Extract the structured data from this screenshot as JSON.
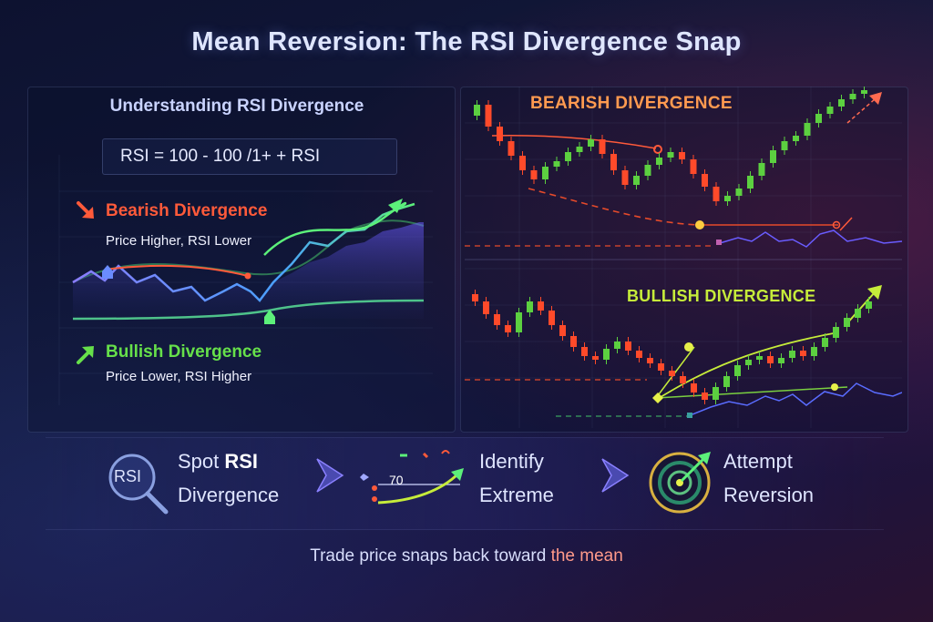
{
  "title": "Mean Reversion: The RSI Divergence Snap",
  "left_panel": {
    "heading": "Understanding RSI Divergence",
    "formula": "RSI = 100 - 100 /1+ + RSI",
    "bearish": {
      "label": "Bearish Divergence",
      "description": "Price Higher, RSI Lower",
      "color": "#ff5a3a"
    },
    "bullish": {
      "label": "Bullish Divergence",
      "description": "Price Lower, RSI Higher",
      "color": "#66e04a"
    }
  },
  "right_panel": {
    "bearish_label": "BEARISH DIVERGENCE",
    "bullish_label": "BULLISH DIVERGENCE"
  },
  "steps": [
    {
      "line1_prefix": "Spot ",
      "line1_bold": "RSI",
      "line2": "Divergence",
      "icon": "magnifier-rsi-icon",
      "badge": "RSI"
    },
    {
      "line1": "Identify",
      "line2": "Extreme",
      "icon": "gauge-chart-icon",
      "gauge_value": "70"
    },
    {
      "line1": "Attempt",
      "line2": "Reversion",
      "icon": "target-icon"
    }
  ],
  "footer": {
    "text": "Trade price snaps back toward ",
    "accent": "the mean"
  },
  "colors": {
    "bearish": "#ff5a3a",
    "bullish": "#66e04a",
    "accent_orange": "#ff9a50",
    "accent_lime": "#c6ec3a",
    "background": "#141a3d"
  }
}
